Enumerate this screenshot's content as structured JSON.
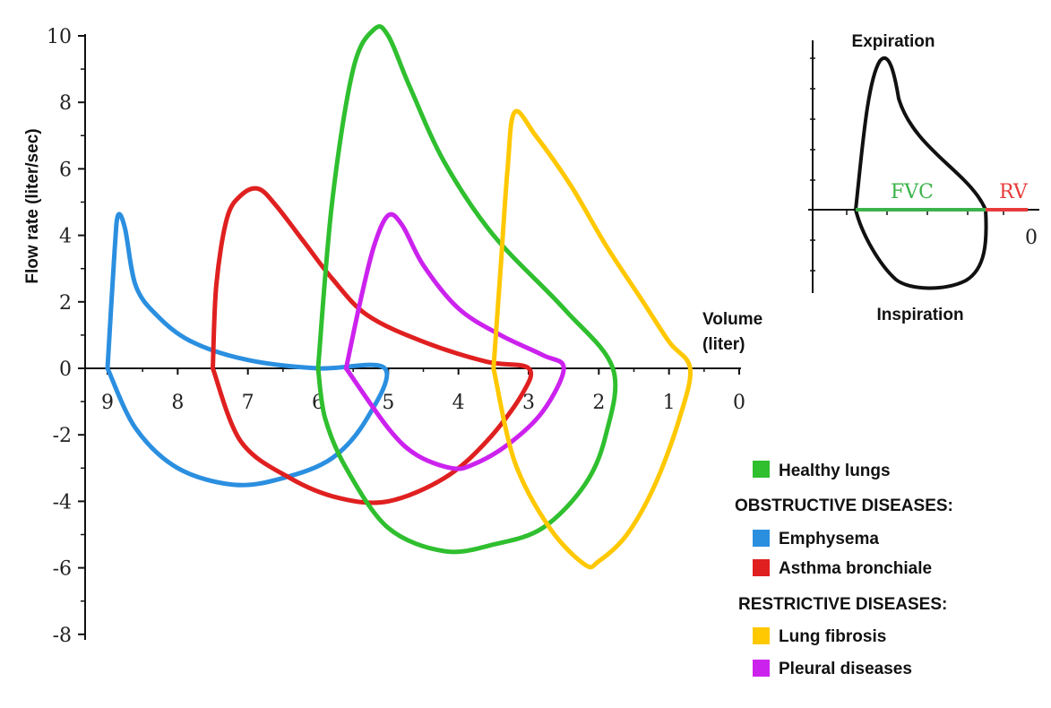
{
  "chart_data": {
    "type": "line",
    "ylabel": "Flow rate (liter/sec)",
    "xlabel_line1": "Volume",
    "xlabel_line2": "(liter)",
    "xlim": [
      9,
      0
    ],
    "ylim": [
      -8,
      10
    ],
    "x_ticks": [
      "9",
      "8",
      "7",
      "6",
      "5",
      "4",
      "3",
      "2",
      "1",
      "0"
    ],
    "y_ticks": [
      "10",
      "8",
      "6",
      "4",
      "2",
      "0",
      "-2",
      "-4",
      "-6",
      "-8"
    ],
    "series": [
      {
        "name": "Healthy lungs",
        "color": "#2fbf2f",
        "points": [
          [
            6.0,
            0
          ],
          [
            5.8,
            5
          ],
          [
            5.5,
            9
          ],
          [
            5.2,
            10.2
          ],
          [
            5.0,
            10.0
          ],
          [
            4.7,
            8.5
          ],
          [
            4.2,
            6.2
          ],
          [
            3.5,
            4.0
          ],
          [
            2.5,
            1.8
          ],
          [
            1.8,
            0
          ],
          [
            1.9,
            -2.0
          ],
          [
            2.2,
            -3.5
          ],
          [
            2.8,
            -4.8
          ],
          [
            3.5,
            -5.3
          ],
          [
            4.2,
            -5.5
          ],
          [
            5.0,
            -4.8
          ],
          [
            5.6,
            -3.0
          ],
          [
            5.9,
            -1.5
          ],
          [
            6.0,
            0
          ]
        ]
      },
      {
        "name": "Emphysema",
        "color": "#2b8fe0",
        "points": [
          [
            9.0,
            0
          ],
          [
            8.9,
            3.5
          ],
          [
            8.85,
            4.6
          ],
          [
            8.75,
            4.2
          ],
          [
            8.6,
            2.5
          ],
          [
            8.3,
            1.6
          ],
          [
            7.8,
            0.8
          ],
          [
            7.0,
            0.25
          ],
          [
            6.0,
            0
          ],
          [
            5.05,
            0
          ],
          [
            5.3,
            -1.5
          ],
          [
            5.8,
            -2.7
          ],
          [
            6.5,
            -3.3
          ],
          [
            7.2,
            -3.5
          ],
          [
            8.0,
            -3.0
          ],
          [
            8.6,
            -1.8
          ],
          [
            9.0,
            0
          ]
        ]
      },
      {
        "name": "Asthma bronchiale",
        "color": "#e02020",
        "points": [
          [
            7.5,
            0
          ],
          [
            7.45,
            2.5
          ],
          [
            7.3,
            4.5
          ],
          [
            7.1,
            5.2
          ],
          [
            6.85,
            5.4
          ],
          [
            6.6,
            4.9
          ],
          [
            6.2,
            3.8
          ],
          [
            5.8,
            2.7
          ],
          [
            5.3,
            1.6
          ],
          [
            4.5,
            0.8
          ],
          [
            3.6,
            0.2
          ],
          [
            3.0,
            0
          ],
          [
            3.1,
            -0.8
          ],
          [
            3.6,
            -2.2
          ],
          [
            4.2,
            -3.3
          ],
          [
            5.0,
            -4.0
          ],
          [
            5.7,
            -3.9
          ],
          [
            6.4,
            -3.3
          ],
          [
            7.1,
            -2.2
          ],
          [
            7.5,
            0
          ]
        ]
      },
      {
        "name": "Lung fibrosis",
        "color": "#ffc800",
        "points": [
          [
            3.5,
            0
          ],
          [
            3.4,
            3.0
          ],
          [
            3.3,
            6.0
          ],
          [
            3.2,
            7.7
          ],
          [
            2.9,
            7.0
          ],
          [
            2.4,
            5.5
          ],
          [
            1.9,
            3.7
          ],
          [
            1.4,
            2.1
          ],
          [
            1.0,
            0.8
          ],
          [
            0.7,
            0
          ],
          [
            0.85,
            -1.5
          ],
          [
            1.2,
            -3.5
          ],
          [
            1.6,
            -5.0
          ],
          [
            2.0,
            -5.8
          ],
          [
            2.2,
            -5.9
          ],
          [
            2.7,
            -4.8
          ],
          [
            3.2,
            -2.8
          ],
          [
            3.5,
            0
          ]
        ]
      },
      {
        "name": "Pleural diseases",
        "color": "#cc22ee",
        "points": [
          [
            5.6,
            0
          ],
          [
            5.4,
            2.0
          ],
          [
            5.2,
            3.7
          ],
          [
            5.0,
            4.6
          ],
          [
            4.8,
            4.3
          ],
          [
            4.5,
            3.1
          ],
          [
            4.0,
            1.8
          ],
          [
            3.4,
            1.0
          ],
          [
            2.8,
            0.4
          ],
          [
            2.5,
            0
          ],
          [
            2.8,
            -1.3
          ],
          [
            3.3,
            -2.3
          ],
          [
            3.8,
            -2.9
          ],
          [
            4.1,
            -3.0
          ],
          [
            4.6,
            -2.6
          ],
          [
            5.0,
            -1.8
          ],
          [
            5.6,
            0
          ]
        ]
      }
    ]
  },
  "legend": {
    "healthy": {
      "label": "Healthy lungs",
      "color": "#2fbf2f"
    },
    "obstructive_header": "OBSTRUCTIVE DISEASES:",
    "emphysema": {
      "label": "Emphysema",
      "color": "#2b8fe0"
    },
    "asthma": {
      "label": "Asthma bronchiale",
      "color": "#e02020"
    },
    "restrictive_header": "RESTRICTIVE DISEASES:",
    "fibrosis": {
      "label": "Lung fibrosis",
      "color": "#ffc800"
    },
    "pleural": {
      "label": "Pleural diseases",
      "color": "#cc22ee"
    }
  },
  "inset": {
    "top_label": "Expiration",
    "bottom_label": "Inspiration",
    "fvc_label": "FVC",
    "fvc_color": "#3cb34a",
    "rv_label": "RV",
    "rv_color": "#e83a3a",
    "zero_label": "0"
  }
}
